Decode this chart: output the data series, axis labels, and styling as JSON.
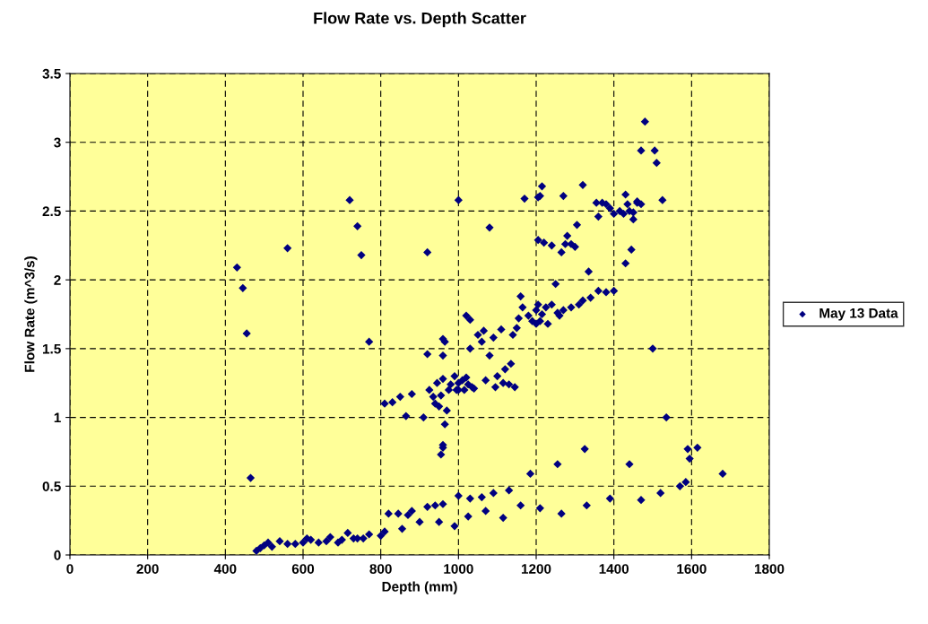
{
  "chart_data": {
    "type": "scatter",
    "title": "Flow Rate vs. Depth Scatter",
    "xlabel": "Depth (mm)",
    "ylabel": "Flow Rate (m^3/s)",
    "xlim": [
      0,
      1800
    ],
    "xticks": [
      0,
      200,
      400,
      600,
      800,
      1000,
      1200,
      1400,
      1600,
      1800
    ],
    "ylim": [
      0,
      3.5
    ],
    "yticks": [
      0,
      0.5,
      1,
      1.5,
      2,
      2.5,
      3,
      3.5
    ],
    "grid": true,
    "legend": "right",
    "marker": "diamond",
    "series": [
      {
        "name": "May 13 Data",
        "color": "#000080",
        "x": [
          480,
          490,
          500,
          510,
          520,
          540,
          560,
          580,
          600,
          610,
          620,
          640,
          660,
          670,
          690,
          700,
          715,
          730,
          740,
          755,
          770,
          800,
          810,
          820,
          845,
          855,
          870,
          880,
          900,
          920,
          940,
          950,
          960,
          990,
          1000,
          1025,
          1030,
          1060,
          1070,
          1090,
          1115,
          1130,
          1160,
          1185,
          1210,
          1255,
          1265,
          1330,
          1325,
          1390,
          1440,
          1470,
          1520,
          1570,
          1585,
          1595,
          1590,
          1615,
          1680,
          1535,
          1500,
          465,
          430,
          445,
          455,
          560,
          720,
          740,
          750,
          770,
          920,
          1000,
          1080,
          1170,
          810,
          830,
          850,
          865,
          880,
          910,
          920,
          925,
          935,
          940,
          945,
          950,
          955,
          960,
          960,
          960,
          965,
          960,
          960,
          955,
          965,
          970,
          975,
          980,
          990,
          995,
          1000,
          1010,
          1015,
          1020,
          1025,
          1030,
          1035,
          1040,
          1050,
          1060,
          1065,
          1070,
          1080,
          1090,
          1095,
          1100,
          1110,
          1115,
          1120,
          1130,
          1135,
          1140,
          1145,
          1150,
          1155,
          1160,
          1165,
          1180,
          1190,
          1200,
          1205,
          1210,
          1215,
          1200,
          1225,
          1230,
          1240,
          1255,
          1260,
          1270,
          1290,
          1310,
          1320,
          1340,
          1360,
          1380,
          1400,
          1335,
          1430,
          1445,
          1020,
          1030,
          1000,
          1250,
          1205,
          1220,
          1240,
          1265,
          1275,
          1280,
          1290,
          1300,
          1305,
          1270,
          1320,
          1210,
          1215,
          1205,
          1355,
          1370,
          1380,
          1390,
          1400,
          1415,
          1425,
          1430,
          1435,
          1440,
          1450,
          1450,
          1460,
          1470,
          1360,
          1525,
          1470,
          1480,
          1505,
          1510,
          1460
        ],
        "values": [
          0.03,
          0.05,
          0.07,
          0.09,
          0.06,
          0.1,
          0.08,
          0.08,
          0.09,
          0.12,
          0.11,
          0.09,
          0.1,
          0.13,
          0.09,
          0.11,
          0.16,
          0.12,
          0.12,
          0.12,
          0.15,
          0.14,
          0.17,
          0.3,
          0.3,
          0.19,
          0.29,
          0.32,
          0.24,
          0.35,
          0.36,
          0.24,
          0.37,
          0.21,
          0.43,
          0.28,
          0.41,
          0.42,
          0.32,
          0.45,
          0.27,
          0.47,
          0.36,
          0.59,
          0.34,
          0.66,
          0.3,
          0.36,
          0.77,
          0.41,
          0.66,
          0.4,
          0.45,
          0.5,
          0.53,
          0.7,
          0.77,
          0.78,
          0.59,
          1.0,
          1.5,
          0.56,
          2.09,
          1.94,
          1.61,
          2.23,
          2.58,
          2.39,
          2.18,
          1.55,
          2.2,
          2.58,
          2.38,
          2.59,
          1.1,
          1.11,
          1.15,
          1.01,
          1.17,
          1.0,
          1.46,
          1.2,
          1.15,
          1.1,
          1.25,
          1.08,
          1.16,
          1.28,
          1.45,
          1.57,
          1.55,
          0.8,
          0.78,
          0.73,
          0.95,
          1.05,
          1.2,
          1.24,
          1.3,
          1.2,
          1.25,
          1.27,
          1.2,
          1.29,
          1.24,
          1.5,
          1.22,
          1.21,
          1.6,
          1.55,
          1.63,
          1.27,
          1.45,
          1.58,
          1.22,
          1.3,
          1.64,
          1.25,
          1.35,
          1.24,
          1.39,
          1.6,
          1.22,
          1.65,
          1.72,
          1.88,
          1.8,
          1.74,
          1.7,
          1.78,
          1.82,
          1.7,
          1.75,
          1.68,
          1.8,
          1.68,
          1.82,
          1.76,
          1.74,
          1.78,
          1.8,
          1.82,
          1.85,
          1.87,
          1.92,
          1.91,
          1.92,
          2.06,
          2.12,
          2.22,
          1.74,
          1.71,
          1.2,
          1.97,
          2.29,
          2.27,
          2.25,
          2.2,
          2.26,
          2.32,
          2.26,
          2.24,
          2.4,
          2.61,
          2.69,
          2.61,
          2.68,
          2.6,
          2.56,
          2.56,
          2.55,
          2.52,
          2.48,
          2.5,
          2.48,
          2.62,
          2.55,
          2.5,
          2.49,
          2.44,
          2.57,
          2.55,
          2.46,
          2.58,
          2.94,
          3.15,
          2.94,
          2.85,
          2.56
        ]
      }
    ]
  }
}
